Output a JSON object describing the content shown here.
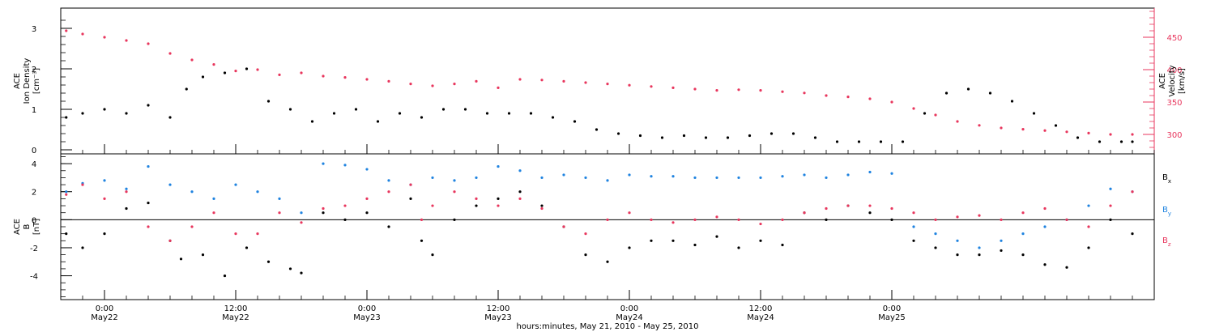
{
  "chart_data": [
    {
      "type": "scatter",
      "panel": "top",
      "ylabel_left": [
        "ACE",
        "Ion Density",
        "[cm⁻³]"
      ],
      "ylabel_right": [
        "ACE",
        "Velocity",
        "[km/s]"
      ],
      "x_unit": "hours since 2010-05-21 00:00 UT",
      "xlim": [
        20,
        120
      ],
      "ylim_left": [
        -0.1,
        3.5
      ],
      "ylim_right": [
        270,
        495
      ],
      "left_ticks": [
        "0",
        "1",
        "2",
        "3"
      ],
      "right_ticks": [
        "300",
        "350",
        "400",
        "450"
      ],
      "series": [
        {
          "axis": "left",
          "color": "#000000",
          "points": [
            [
              20.5,
              0.8
            ],
            [
              22,
              0.9
            ],
            [
              24,
              1.0
            ],
            [
              26,
              0.9
            ],
            [
              28,
              1.1
            ],
            [
              30,
              0.8
            ],
            [
              31.5,
              1.5
            ],
            [
              33,
              1.8
            ],
            [
              35,
              1.9
            ],
            [
              37,
              2.0
            ],
            [
              39,
              1.2
            ],
            [
              41,
              1.0
            ],
            [
              43,
              0.7
            ],
            [
              45,
              0.9
            ],
            [
              47,
              1.0
            ],
            [
              49,
              0.7
            ],
            [
              51,
              0.9
            ],
            [
              53,
              0.8
            ],
            [
              55,
              1.0
            ],
            [
              57,
              1.0
            ],
            [
              59,
              0.9
            ],
            [
              61,
              0.9
            ],
            [
              63,
              0.9
            ],
            [
              65,
              0.8
            ],
            [
              67,
              0.7
            ],
            [
              69,
              0.5
            ],
            [
              71,
              0.4
            ],
            [
              73,
              0.35
            ],
            [
              75,
              0.3
            ],
            [
              77,
              0.35
            ],
            [
              79,
              0.3
            ],
            [
              81,
              0.3
            ],
            [
              83,
              0.35
            ],
            [
              85,
              0.4
            ],
            [
              87,
              0.4
            ],
            [
              89,
              0.3
            ],
            [
              91,
              0.2
            ],
            [
              93,
              0.2
            ],
            [
              95,
              0.2
            ],
            [
              97,
              0.2
            ],
            [
              99,
              0.9
            ],
            [
              101,
              1.4
            ],
            [
              103,
              1.5
            ],
            [
              105,
              1.4
            ],
            [
              107,
              1.2
            ],
            [
              109,
              0.9
            ],
            [
              111,
              0.6
            ],
            [
              113,
              0.3
            ],
            [
              115,
              0.2
            ],
            [
              117,
              0.2
            ],
            [
              118,
              0.2
            ]
          ]
        },
        {
          "axis": "right",
          "color": "#e8365d",
          "points": [
            [
              20.5,
              460
            ],
            [
              22,
              455
            ],
            [
              24,
              450
            ],
            [
              26,
              445
            ],
            [
              28,
              440
            ],
            [
              30,
              425
            ],
            [
              32,
              415
            ],
            [
              34,
              408
            ],
            [
              36,
              398
            ],
            [
              38,
              400
            ],
            [
              40,
              392
            ],
            [
              42,
              395
            ],
            [
              44,
              390
            ],
            [
              46,
              388
            ],
            [
              48,
              385
            ],
            [
              50,
              382
            ],
            [
              52,
              378
            ],
            [
              54,
              375
            ],
            [
              56,
              378
            ],
            [
              58,
              382
            ],
            [
              60,
              372
            ],
            [
              62,
              385
            ],
            [
              64,
              384
            ],
            [
              66,
              382
            ],
            [
              68,
              380
            ],
            [
              70,
              378
            ],
            [
              72,
              376
            ],
            [
              74,
              374
            ],
            [
              76,
              372
            ],
            [
              78,
              370
            ],
            [
              80,
              368
            ],
            [
              82,
              369
            ],
            [
              84,
              368
            ],
            [
              86,
              366
            ],
            [
              88,
              364
            ],
            [
              90,
              360
            ],
            [
              92,
              358
            ],
            [
              94,
              355
            ],
            [
              96,
              350
            ],
            [
              98,
              340
            ],
            [
              100,
              330
            ],
            [
              102,
              320
            ],
            [
              104,
              314
            ],
            [
              106,
              310
            ],
            [
              108,
              308
            ],
            [
              110,
              306
            ],
            [
              112,
              304
            ],
            [
              114,
              302
            ],
            [
              116,
              300
            ],
            [
              118,
              300
            ]
          ]
        }
      ]
    },
    {
      "type": "scatter",
      "panel": "bottom",
      "ylabel": [
        "ACE",
        "B",
        "[nT]"
      ],
      "x_unit": "hours since 2010-05-21 00:00 UT",
      "xlim": [
        20,
        120
      ],
      "ylim": [
        -5.7,
        4.7
      ],
      "ticks": [
        "-4",
        "-2",
        "0",
        "2",
        "4"
      ],
      "legend_position": "right",
      "series": [
        {
          "name": "Bx",
          "label_base": "B",
          "label_sub": "x",
          "color": "#000000",
          "points": [
            [
              20.5,
              -1.0
            ],
            [
              22,
              -2.0
            ],
            [
              24,
              -1.0
            ],
            [
              26,
              0.8
            ],
            [
              28,
              1.2
            ],
            [
              30,
              -1.5
            ],
            [
              31,
              -2.8
            ],
            [
              33,
              -2.5
            ],
            [
              35,
              -4.0
            ],
            [
              37,
              -2.0
            ],
            [
              39,
              -3.0
            ],
            [
              41,
              -3.5
            ],
            [
              42,
              -3.8
            ],
            [
              44,
              0.5
            ],
            [
              46,
              0.0
            ],
            [
              48,
              0.5
            ],
            [
              50,
              -0.5
            ],
            [
              52,
              1.5
            ],
            [
              53,
              -1.5
            ],
            [
              54,
              -2.5
            ],
            [
              56,
              0.0
            ],
            [
              58,
              1.0
            ],
            [
              60,
              1.5
            ],
            [
              62,
              2.0
            ],
            [
              64,
              1.0
            ],
            [
              66,
              -0.5
            ],
            [
              68,
              -2.5
            ],
            [
              70,
              -3.0
            ],
            [
              72,
              -2.0
            ],
            [
              74,
              -1.5
            ],
            [
              76,
              -1.5
            ],
            [
              78,
              -1.8
            ],
            [
              80,
              -1.2
            ],
            [
              82,
              -2.0
            ],
            [
              84,
              -1.5
            ],
            [
              86,
              -1.8
            ],
            [
              88,
              0.5
            ],
            [
              90,
              0.0
            ],
            [
              92,
              1.0
            ],
            [
              94,
              0.5
            ],
            [
              96,
              0.0
            ],
            [
              98,
              -1.5
            ],
            [
              100,
              -2.0
            ],
            [
              102,
              -2.5
            ],
            [
              104,
              -2.5
            ],
            [
              106,
              -2.2
            ],
            [
              108,
              -2.5
            ],
            [
              110,
              -3.2
            ],
            [
              112,
              -3.4
            ],
            [
              114,
              -2.0
            ],
            [
              116,
              0.0
            ],
            [
              118,
              -1.0
            ]
          ]
        },
        {
          "name": "By",
          "label_base": "B",
          "label_sub": "y",
          "color": "#1f83e0",
          "points": [
            [
              20.5,
              2.0
            ],
            [
              22,
              2.6
            ],
            [
              24,
              2.8
            ],
            [
              26,
              2.2
            ],
            [
              28,
              3.8
            ],
            [
              30,
              2.5
            ],
            [
              32,
              2.0
            ],
            [
              34,
              1.5
            ],
            [
              36,
              2.5
            ],
            [
              38,
              2.0
            ],
            [
              40,
              1.5
            ],
            [
              42,
              0.5
            ],
            [
              44,
              4.0
            ],
            [
              46,
              3.9
            ],
            [
              48,
              3.6
            ],
            [
              50,
              2.8
            ],
            [
              52,
              2.5
            ],
            [
              54,
              3.0
            ],
            [
              56,
              2.8
            ],
            [
              58,
              3.0
            ],
            [
              60,
              3.8
            ],
            [
              62,
              3.5
            ],
            [
              64,
              3.0
            ],
            [
              66,
              3.2
            ],
            [
              68,
              3.0
            ],
            [
              70,
              2.8
            ],
            [
              72,
              3.2
            ],
            [
              74,
              3.1
            ],
            [
              76,
              3.1
            ],
            [
              78,
              3.0
            ],
            [
              80,
              3.0
            ],
            [
              82,
              3.0
            ],
            [
              84,
              3.0
            ],
            [
              86,
              3.1
            ],
            [
              88,
              3.2
            ],
            [
              90,
              3.0
            ],
            [
              92,
              3.2
            ],
            [
              94,
              3.4
            ],
            [
              96,
              3.3
            ],
            [
              98,
              -0.5
            ],
            [
              100,
              -1.0
            ],
            [
              102,
              -1.5
            ],
            [
              104,
              -2.0
            ],
            [
              106,
              -1.5
            ],
            [
              108,
              -1.0
            ],
            [
              110,
              -0.5
            ],
            [
              112,
              0.0
            ],
            [
              114,
              1.0
            ],
            [
              116,
              2.2
            ],
            [
              118,
              2.0
            ]
          ]
        },
        {
          "name": "Bz",
          "label_base": "B",
          "label_sub": "z",
          "color": "#e8365d",
          "points": [
            [
              20.5,
              1.8
            ],
            [
              22,
              2.5
            ],
            [
              24,
              1.5
            ],
            [
              26,
              2.0
            ],
            [
              28,
              -0.5
            ],
            [
              30,
              -1.5
            ],
            [
              32,
              -0.5
            ],
            [
              34,
              0.5
            ],
            [
              36,
              -1.0
            ],
            [
              38,
              -1.0
            ],
            [
              40,
              0.5
            ],
            [
              42,
              -0.2
            ],
            [
              44,
              0.8
            ],
            [
              46,
              1.0
            ],
            [
              48,
              1.5
            ],
            [
              50,
              2.0
            ],
            [
              52,
              2.5
            ],
            [
              53,
              0.0
            ],
            [
              54,
              1.0
            ],
            [
              56,
              2.0
            ],
            [
              58,
              1.5
            ],
            [
              60,
              1.0
            ],
            [
              62,
              1.5
            ],
            [
              64,
              0.8
            ],
            [
              66,
              -0.5
            ],
            [
              68,
              -1.0
            ],
            [
              70,
              0.0
            ],
            [
              72,
              0.5
            ],
            [
              74,
              0.0
            ],
            [
              76,
              -0.2
            ],
            [
              78,
              0.0
            ],
            [
              80,
              0.2
            ],
            [
              82,
              0.0
            ],
            [
              84,
              -0.3
            ],
            [
              86,
              0.0
            ],
            [
              88,
              0.5
            ],
            [
              90,
              0.8
            ],
            [
              92,
              1.0
            ],
            [
              94,
              1.0
            ],
            [
              96,
              0.8
            ],
            [
              98,
              0.5
            ],
            [
              100,
              0.0
            ],
            [
              102,
              0.2
            ],
            [
              104,
              0.3
            ],
            [
              106,
              0.0
            ],
            [
              108,
              0.5
            ],
            [
              110,
              0.8
            ],
            [
              112,
              0.0
            ],
            [
              114,
              -0.5
            ],
            [
              116,
              1.0
            ],
            [
              118,
              2.0
            ]
          ]
        }
      ]
    }
  ],
  "xaxis": {
    "ticks": [
      {
        "time": "0:00",
        "date": "May22"
      },
      {
        "time": "12:00",
        "date": "May22"
      },
      {
        "time": "0:00",
        "date": "May23"
      },
      {
        "time": "12:00",
        "date": "May23"
      },
      {
        "time": "0:00",
        "date": "May24"
      },
      {
        "time": "12:00",
        "date": "May24"
      },
      {
        "time": "0:00",
        "date": "May25"
      }
    ],
    "tick_hours": [
      24,
      36,
      48,
      60,
      72,
      84,
      96
    ],
    "title": "hours:minutes, May 21, 2010 - May 25, 2010"
  }
}
